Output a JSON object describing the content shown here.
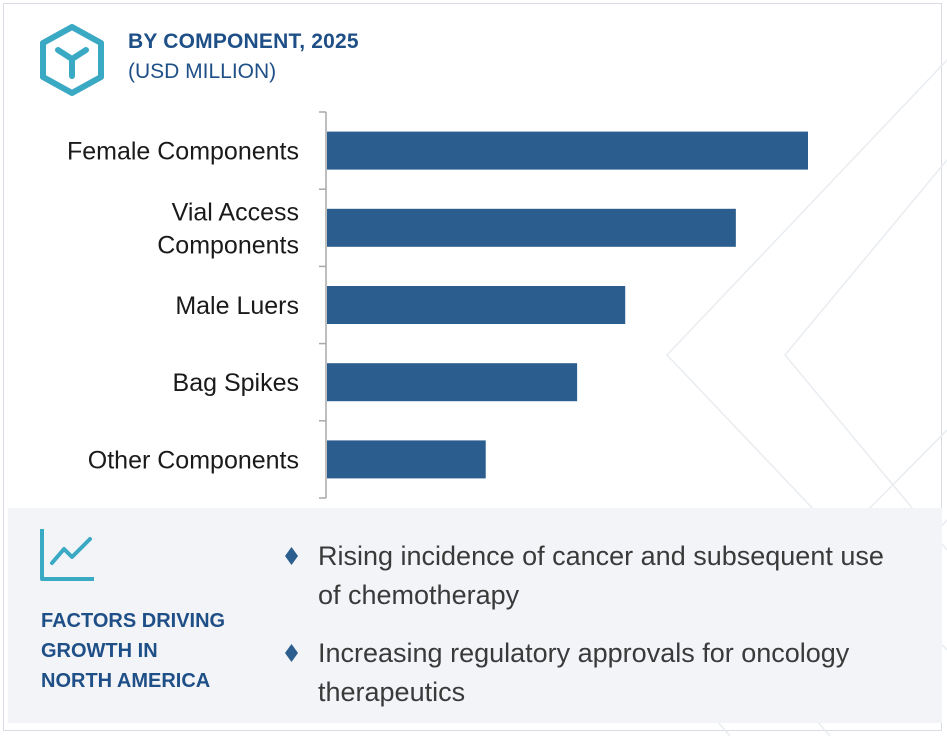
{
  "header": {
    "title": "BY COMPONENT, 2025",
    "subtitle": "(USD MILLION)"
  },
  "colors": {
    "bar": "#2b5d8e",
    "heading": "#1e4f86",
    "accent": "#3aa9c4",
    "panel": "#f3f4f8"
  },
  "icons": {
    "logo": "hexagon-y-logo-icon",
    "growth": "line-chart-trend-icon",
    "bullet": "diamond-bullet-icon"
  },
  "chart_data": {
    "type": "bar",
    "orientation": "horizontal",
    "title": "BY COMPONENT, 2025",
    "subtitle": "(USD MILLION)",
    "categories": [
      [
        "Female Components"
      ],
      [
        "Vial Access",
        "Components"
      ],
      [
        "Male Luers"
      ],
      [
        "Bag Spikes"
      ],
      [
        "Other Components"
      ]
    ],
    "values": [
      100,
      85,
      62,
      52,
      33
    ],
    "xlim": [
      0,
      100
    ],
    "value_axis_shown": false,
    "grid": false,
    "legend": "none"
  },
  "factors": {
    "heading_lines": [
      "FACTORS DRIVING",
      "GROWTH IN",
      "NORTH AMERICA"
    ],
    "items": [
      [
        "Rising incidence of cancer and subsequent use",
        "of chemotherapy"
      ],
      [
        "Increasing regulatory approvals for oncology",
        "therapeutics"
      ]
    ]
  }
}
